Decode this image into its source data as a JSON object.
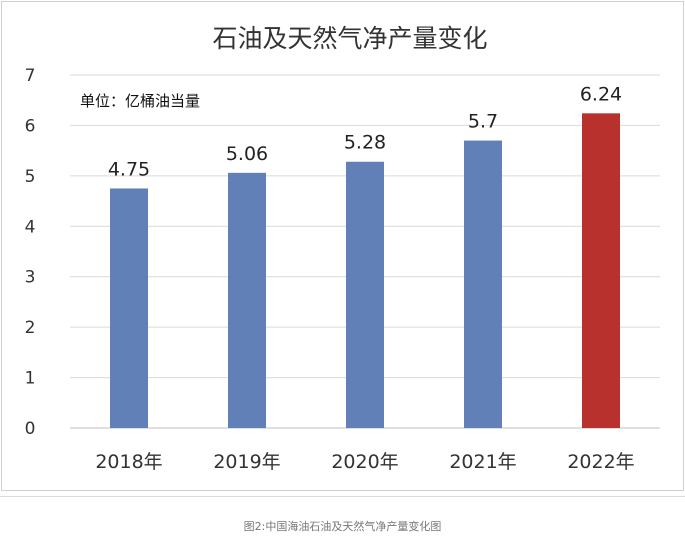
{
  "chart_data": {
    "type": "bar",
    "title": "石油及天然气净产量变化",
    "unit_label": "单位：亿桶油当量",
    "categories": [
      "2018年",
      "2019年",
      "2020年",
      "2021年",
      "2022年"
    ],
    "values": [
      4.75,
      5.06,
      5.28,
      5.7,
      6.24
    ],
    "data_labels": [
      "4.75",
      "5.06",
      "5.28",
      "5.7",
      "6.24"
    ],
    "yticks": [
      "0",
      "1",
      "2",
      "3",
      "4",
      "5",
      "6",
      "7"
    ],
    "ylim": [
      0,
      7
    ],
    "grid": true,
    "legend": "none",
    "colors": {
      "default_bar": "#6180b8",
      "highlight_bar": "#b8312d",
      "gridline": "#d9d9d9",
      "axis": "#bfbfbf"
    },
    "highlight_index": 4
  },
  "caption": "图2:中国海油石油及天然气净产量变化图"
}
